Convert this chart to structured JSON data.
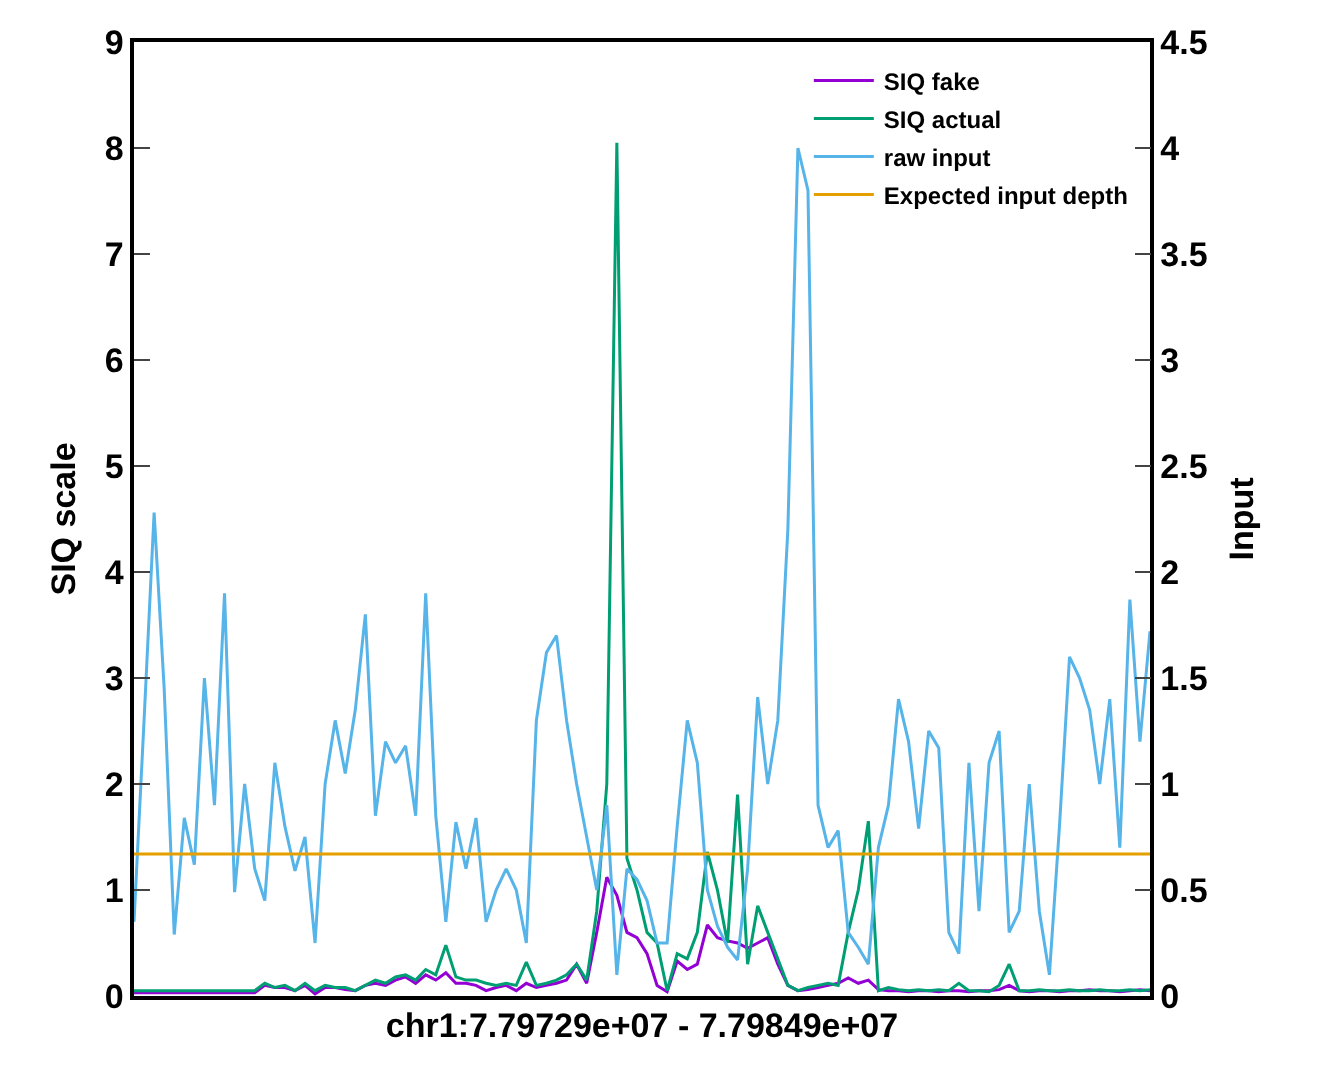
{
  "chart_data": {
    "type": "line",
    "xlabel": "chr1:7.79729e+07 - 7.79849e+07",
    "ylabel": "SIQ scale",
    "y2label": "Input",
    "categories": [
      null,
      null,
      null,
      null,
      null,
      null,
      null,
      null,
      null,
      null,
      null,
      null,
      null,
      null,
      null,
      null,
      null,
      null,
      null,
      null,
      null,
      null,
      null,
      null,
      null,
      null,
      null,
      null,
      null,
      null,
      null,
      null,
      null,
      null,
      null,
      null,
      null,
      null,
      null,
      null,
      null,
      null,
      null,
      null,
      null,
      null,
      null,
      null,
      null,
      null,
      null,
      null,
      null,
      null,
      null,
      null,
      null,
      null,
      null,
      null,
      null,
      null,
      null,
      null,
      null,
      null,
      null,
      null,
      null,
      null,
      null,
      null,
      null,
      null,
      null,
      null,
      null,
      null,
      null,
      null,
      null,
      null,
      null,
      null,
      null,
      null,
      null,
      null,
      null,
      null,
      null,
      null,
      null,
      null,
      null,
      null,
      null,
      null,
      null,
      null,
      null,
      null
    ],
    "series": [
      {
        "name": "SIQ fake",
        "color": "#9400d3",
        "values": [
          0.03,
          0.03,
          0.03,
          0.03,
          0.03,
          0.03,
          0.03,
          0.03,
          0.03,
          0.03,
          0.03,
          0.03,
          0.03,
          0.1,
          0.08,
          0.08,
          0.05,
          0.1,
          0.02,
          0.08,
          0.08,
          0.06,
          0.05,
          0.1,
          0.12,
          0.1,
          0.15,
          0.18,
          0.12,
          0.2,
          0.15,
          0.22,
          0.12,
          0.12,
          0.1,
          0.05,
          0.08,
          0.1,
          0.05,
          0.12,
          0.08,
          0.1,
          0.12,
          0.15,
          0.3,
          0.12,
          0.6,
          1.12,
          0.95,
          0.6,
          0.55,
          0.4,
          0.1,
          0.04,
          0.33,
          0.25,
          0.3,
          0.67,
          0.55,
          0.52,
          0.5,
          0.45,
          0.5,
          0.55,
          0.3,
          0.1,
          0.05,
          0.06,
          0.08,
          0.1,
          0.12,
          0.17,
          0.12,
          0.15,
          0.06,
          0.05,
          0.05,
          0.04,
          0.05,
          0.05,
          0.04,
          0.05,
          0.05,
          0.04,
          0.05,
          0.05,
          0.06,
          0.1,
          0.05,
          0.04,
          0.05,
          0.05,
          0.04,
          0.05,
          0.05,
          0.06,
          0.05,
          0.05,
          0.04,
          0.05,
          0.06,
          0.05
        ]
      },
      {
        "name": "SIQ actual",
        "color": "#009e73",
        "values": [
          0.05,
          0.05,
          0.05,
          0.05,
          0.05,
          0.05,
          0.05,
          0.05,
          0.05,
          0.05,
          0.05,
          0.05,
          0.05,
          0.12,
          0.08,
          0.1,
          0.05,
          0.12,
          0.05,
          0.1,
          0.08,
          0.08,
          0.05,
          0.1,
          0.15,
          0.12,
          0.18,
          0.2,
          0.15,
          0.25,
          0.2,
          0.48,
          0.18,
          0.15,
          0.15,
          0.12,
          0.1,
          0.12,
          0.1,
          0.32,
          0.1,
          0.12,
          0.15,
          0.2,
          0.3,
          0.15,
          0.8,
          2.0,
          8.05,
          1.3,
          1.0,
          0.6,
          0.5,
          0.05,
          0.4,
          0.35,
          0.6,
          1.36,
          1.0,
          0.5,
          1.9,
          0.3,
          0.85,
          0.6,
          0.35,
          0.1,
          0.05,
          0.08,
          0.1,
          0.12,
          0.1,
          0.6,
          1.0,
          1.65,
          0.05,
          0.08,
          0.06,
          0.05,
          0.06,
          0.05,
          0.06,
          0.05,
          0.12,
          0.05,
          0.05,
          0.04,
          0.1,
          0.3,
          0.05,
          0.05,
          0.06,
          0.05,
          0.05,
          0.06,
          0.05,
          0.05,
          0.06,
          0.05,
          0.05,
          0.06,
          0.05,
          0.06
        ]
      },
      {
        "name": "raw input",
        "color": "#56b4e9",
        "axis": "y2",
        "values": [
          0.35,
          1.3,
          2.28,
          1.45,
          0.29,
          0.84,
          0.62,
          1.5,
          0.9,
          1.9,
          0.49,
          1.0,
          0.6,
          0.45,
          1.1,
          0.8,
          0.59,
          0.75,
          0.25,
          1.0,
          1.3,
          1.05,
          1.35,
          1.8,
          0.85,
          1.2,
          1.1,
          1.18,
          0.85,
          1.9,
          0.85,
          0.35,
          0.82,
          0.6,
          0.84,
          0.35,
          0.5,
          0.6,
          0.5,
          0.25,
          1.3,
          1.62,
          1.7,
          1.3,
          1.0,
          0.75,
          0.5,
          0.9,
          0.1,
          0.6,
          0.55,
          0.45,
          0.25,
          0.25,
          0.8,
          1.3,
          1.1,
          0.5,
          0.33,
          0.23,
          0.17,
          0.6,
          1.41,
          1.0,
          1.3,
          2.2,
          4.0,
          3.8,
          0.9,
          0.7,
          0.78,
          0.3,
          0.23,
          0.15,
          0.7,
          0.9,
          1.4,
          1.2,
          0.79,
          1.25,
          1.17,
          0.3,
          0.2,
          1.1,
          0.4,
          1.1,
          1.25,
          0.3,
          0.4,
          1.0,
          0.4,
          0.1,
          0.8,
          1.6,
          1.5,
          1.35,
          1.0,
          1.4,
          0.7,
          1.87,
          1.2,
          1.72
        ]
      }
    ],
    "ref_lines": [
      {
        "axis": "y2",
        "value": 0.67,
        "label": "Expected input depth",
        "color": "#e69f00"
      }
    ],
    "ylim": [
      0,
      9
    ],
    "yticks": [
      0,
      1,
      2,
      3,
      4,
      5,
      6,
      7,
      8,
      9
    ],
    "y2lim": [
      0,
      4.5
    ],
    "y2ticks": [
      0,
      0.5,
      1,
      1.5,
      2,
      2.5,
      3,
      3.5,
      4,
      4.5
    ],
    "tick_labels": "y",
    "legend": "top right",
    "marker": "none",
    "line_style": "solid"
  }
}
